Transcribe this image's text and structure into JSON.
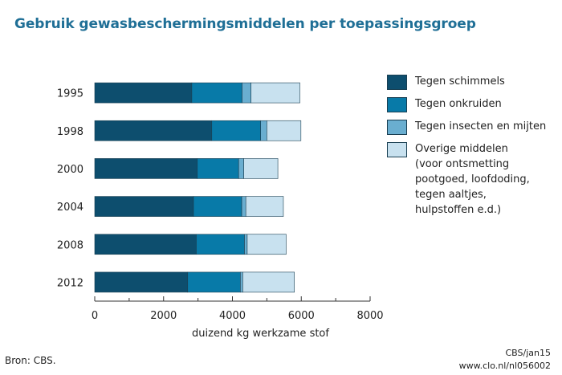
{
  "title": "Gebruik gewasbeschermingsmiddelen per toepassingsgroep",
  "source": "Bron: CBS.",
  "credit": [
    "CBS/jan15",
    "www.clo.nl/nl056002"
  ],
  "colors": {
    "schimmels": "#0d4e6e",
    "onkruiden": "#087aa8",
    "insecten": "#6aaed0",
    "overige": "#c8e1ef"
  },
  "legend": [
    {
      "key": "schimmels",
      "lines": [
        "Tegen schimmels"
      ]
    },
    {
      "key": "onkruiden",
      "lines": [
        "Tegen onkruiden"
      ]
    },
    {
      "key": "insecten",
      "lines": [
        "Tegen insecten en mijten"
      ]
    },
    {
      "key": "overige",
      "lines": [
        "Overige middelen",
        "(voor ontsmetting",
        "pootgoed, loofdoding,",
        "tegen aaltjes,",
        "hulpstoffen e.d.)"
      ]
    }
  ],
  "chart_data": {
    "type": "bar",
    "orientation": "horizontal",
    "stacked": true,
    "title": "Gebruik gewasbeschermingsmiddelen per toepassingsgroep",
    "xlabel": "duizend kg werkzame stof",
    "ylabel": "",
    "xlim": [
      0,
      8000
    ],
    "xticks": [
      "0",
      "2000",
      "4000",
      "6000",
      "8000"
    ],
    "xtick_values": [
      0,
      2000,
      4000,
      6000,
      8000
    ],
    "grid": false,
    "legend_position": "right",
    "categories": [
      "1995",
      "1998",
      "2000",
      "2004",
      "2008",
      "2012"
    ],
    "series": [
      {
        "name": "Tegen schimmels",
        "key": "schimmels",
        "values": [
          2820,
          3400,
          2980,
          2870,
          2950,
          2700
        ]
      },
      {
        "name": "Tegen onkruiden",
        "key": "onkruiden",
        "values": [
          1460,
          1420,
          1200,
          1400,
          1400,
          1530
        ]
      },
      {
        "name": "Tegen insecten en mijten",
        "key": "insecten",
        "values": [
          260,
          180,
          150,
          120,
          80,
          70
        ]
      },
      {
        "name": "Overige middelen (voor ontsmetting pootgoed, loofdoding, tegen aaltjes, hulpstoffen e.d.)",
        "key": "overige",
        "values": [
          1420,
          990,
          990,
          1090,
          1130,
          1500
        ]
      }
    ]
  }
}
